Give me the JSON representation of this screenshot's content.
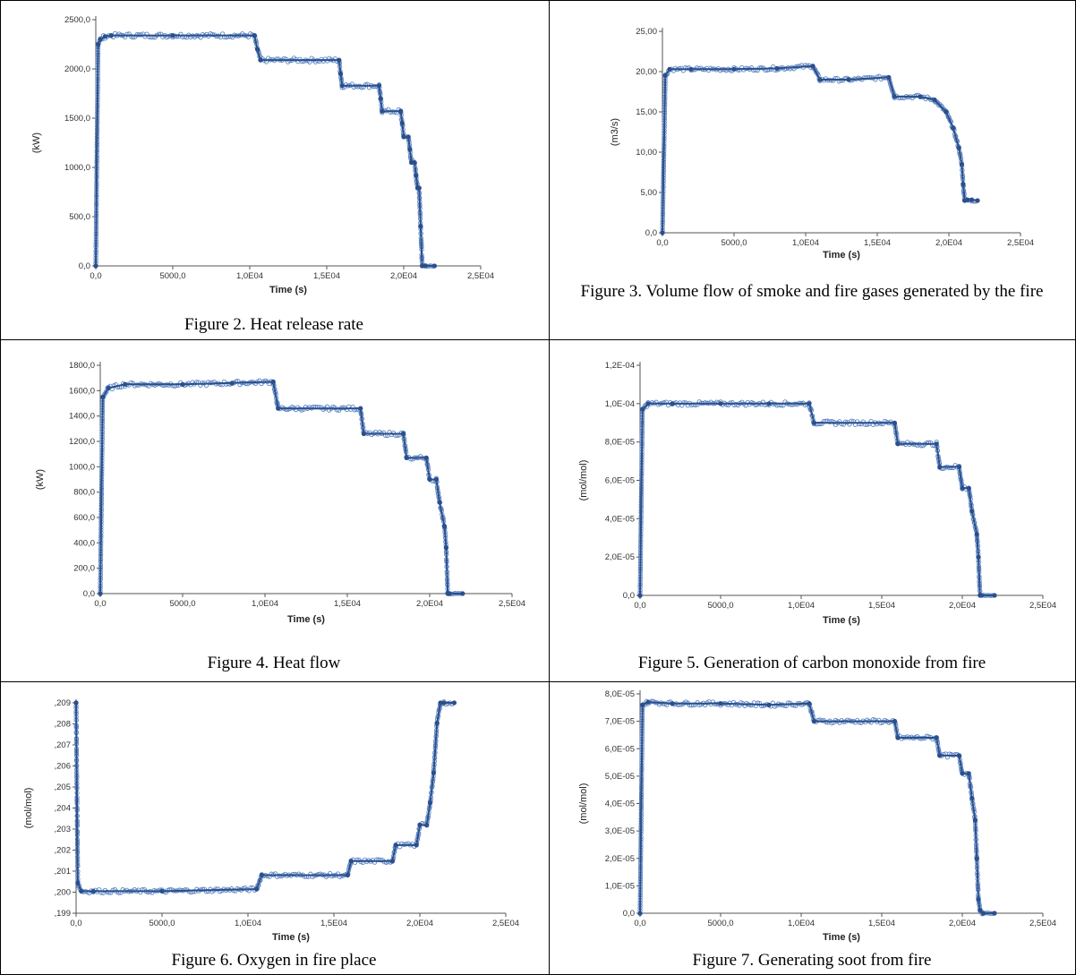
{
  "colors": {
    "series": "#2b4f8a",
    "marker": "#5b84c4",
    "axis": "#555555"
  },
  "charts": [
    {
      "caption": "Figure 2. Heat release rate",
      "ticks_y": [
        "2500,0",
        "2000,0",
        "1500,0",
        "1000,0",
        "500,0",
        "0,0"
      ],
      "ticks_x": [
        "0,0",
        "5000,0",
        "1,0E04",
        "1,5E04",
        "2,0E04",
        "2,5E04"
      ],
      "ylabel": "(kW)",
      "xlabel": "Time (s)"
    },
    {
      "caption": "Figure 3. Volume flow of smoke and fire gases generated by the fire",
      "ticks_y": [
        "25,00",
        "20,00",
        "15,00",
        "10,00",
        "5,00",
        "0,0"
      ],
      "ticks_x": [
        "0,0",
        "5000,0",
        "1,0E04",
        "1,5E04",
        "2,0E04",
        "2,5E04"
      ],
      "ylabel": "(m3/s)",
      "xlabel": "Time (s)"
    },
    {
      "caption": "Figure 4. Heat flow",
      "ticks_y": [
        "1800,0",
        "1600,0",
        "1400,0",
        "1200,0",
        "1000,0",
        "800,0",
        "600,0",
        "400,0",
        "200,0",
        "0,0"
      ],
      "ticks_x": [
        "0,0",
        "5000,0",
        "1,0E04",
        "1,5E04",
        "2,0E04",
        "2,5E04"
      ],
      "ylabel": "(kW)",
      "xlabel": "Time (s)"
    },
    {
      "caption": "Figure 5. Generation of carbon monoxide from fire",
      "ticks_y": [
        "1,2E-04",
        "1,0E-04",
        "8,0E-05",
        "6,0E-05",
        "4,0E-05",
        "2,0E-05",
        "0,0"
      ],
      "ticks_x": [
        "0,0",
        "5000,0",
        "1,0E04",
        "1,5E04",
        "2,0E04",
        "2,5E04"
      ],
      "ylabel": "(mol/mol)",
      "xlabel": "Time (s)"
    },
    {
      "caption": "Figure 6. Oxygen in fire place",
      "ticks_y": [
        ",209",
        ",208",
        ",207",
        ",206",
        ",205",
        ",204",
        ",203",
        ",202",
        ",201",
        ",200",
        ",199"
      ],
      "ticks_x": [
        "0,0",
        "5000,0",
        "1,0E04",
        "1,5E04",
        "2,0E04",
        "2,5E04"
      ],
      "ylabel": "(mol/mol)",
      "xlabel": "Time (s)"
    },
    {
      "caption": "Figure 7. Generating soot from fire",
      "ticks_y": [
        "8,0E-05",
        "7,0E-05",
        "6,0E-05",
        "5,0E-05",
        "4,0E-05",
        "3,0E-05",
        "2,0E-05",
        "1,0E-05",
        "0,0"
      ],
      "ticks_x": [
        "0,0",
        "5000,0",
        "1,0E04",
        "1,5E04",
        "2,0E04",
        "2,5E04"
      ],
      "ylabel": "(mol/mol)",
      "xlabel": "Time (s)"
    }
  ],
  "chart_data": [
    {
      "type": "line",
      "title": "",
      "xlabel": "Time (s)",
      "ylabel": "(kW)",
      "xlim": [
        0,
        25000
      ],
      "ylim": [
        0,
        2500
      ],
      "x": [
        0,
        150,
        300,
        600,
        1000,
        5000,
        10300,
        10500,
        10700,
        15800,
        15900,
        16000,
        18400,
        18500,
        18600,
        19800,
        19900,
        20000,
        20300,
        20400,
        20500,
        20700,
        20800,
        20900,
        21000,
        21100,
        21200,
        21400,
        22000
      ],
      "y": [
        0,
        2250,
        2300,
        2330,
        2340,
        2340,
        2340,
        2200,
        2090,
        2090,
        1950,
        1830,
        1830,
        1700,
        1570,
        1570,
        1450,
        1310,
        1310,
        1180,
        1050,
        1050,
        920,
        790,
        790,
        400,
        0,
        0,
        0
      ],
      "grid": false
    },
    {
      "type": "line",
      "title": "",
      "xlabel": "Time (s)",
      "ylabel": "(m3/s)",
      "xlim": [
        0,
        25000
      ],
      "ylim": [
        0,
        25
      ],
      "x": [
        0,
        200,
        500,
        2000,
        5000,
        8000,
        10500,
        11000,
        13000,
        15800,
        16200,
        18000,
        19000,
        19800,
        20300,
        20700,
        20900,
        21000,
        21100,
        21300,
        21600,
        22000
      ],
      "y": [
        0,
        19.5,
        20.3,
        20.3,
        20.3,
        20.4,
        20.7,
        19.0,
        19.0,
        19.3,
        16.9,
        16.9,
        16.5,
        15.0,
        13.0,
        10.5,
        8.5,
        6.0,
        4.0,
        4.1,
        4.1,
        4.0
      ],
      "grid": false
    },
    {
      "type": "line",
      "title": "",
      "xlabel": "Time (s)",
      "ylabel": "(kW)",
      "xlim": [
        0,
        25000
      ],
      "ylim": [
        0,
        1800
      ],
      "x": [
        0,
        150,
        500,
        1500,
        5000,
        8000,
        10500,
        10800,
        15800,
        16000,
        18400,
        18600,
        19800,
        20000,
        20400,
        20600,
        20900,
        21000,
        21100,
        21200,
        22000
      ],
      "y": [
        0,
        1550,
        1620,
        1650,
        1650,
        1660,
        1670,
        1460,
        1460,
        1260,
        1260,
        1070,
        1070,
        900,
        900,
        720,
        530,
        360,
        0,
        0,
        0
      ],
      "grid": false
    },
    {
      "type": "line",
      "title": "",
      "xlabel": "Time (s)",
      "ylabel": "(mol/mol)",
      "xlim": [
        0,
        25000
      ],
      "ylim": [
        0,
        0.00012
      ],
      "x": [
        0,
        150,
        500,
        2000,
        5000,
        8000,
        10500,
        10800,
        15800,
        16000,
        18400,
        18600,
        19800,
        20000,
        20400,
        20600,
        20900,
        21000,
        21100,
        21200,
        22000
      ],
      "y": [
        0,
        9.7e-05,
        0.0001,
        0.0001,
        0.0001,
        0.0001,
        0.0001,
        9e-05,
        9e-05,
        7.9e-05,
        7.9e-05,
        6.7e-05,
        6.7e-05,
        5.6e-05,
        5.6e-05,
        4.4e-05,
        3.2e-05,
        2e-05,
        0,
        0,
        0
      ],
      "grid": false
    },
    {
      "type": "line",
      "title": "",
      "xlabel": "Time (s)",
      "ylabel": "(mol/mol)",
      "xlim": [
        0,
        25000
      ],
      "ylim": [
        0.199,
        0.2095
      ],
      "x": [
        0,
        100,
        300,
        1000,
        5000,
        10500,
        10800,
        15800,
        16000,
        18400,
        18600,
        19800,
        20000,
        20400,
        20600,
        20800,
        21000,
        21200,
        21400,
        22000
      ],
      "y": [
        0.2095,
        0.2005,
        0.2001,
        0.2001,
        0.2001,
        0.2002,
        0.2009,
        0.2009,
        0.2016,
        0.2016,
        0.2024,
        0.2024,
        0.2034,
        0.2034,
        0.2045,
        0.206,
        0.2085,
        0.2095,
        0.2095,
        0.2095
      ],
      "grid": false
    },
    {
      "type": "line",
      "title": "",
      "xlabel": "Time (s)",
      "ylabel": "(mol/mol)",
      "xlim": [
        0,
        25000
      ],
      "ylim": [
        0,
        8e-05
      ],
      "x": [
        0,
        150,
        500,
        2000,
        5000,
        8000,
        10500,
        10800,
        15800,
        16000,
        18400,
        18600,
        19800,
        20000,
        20400,
        20600,
        20800,
        20900,
        21000,
        21100,
        21300,
        22000
      ],
      "y": [
        0,
        7.6e-05,
        7.7e-05,
        7.65e-05,
        7.65e-05,
        7.6e-05,
        7.65e-05,
        7e-05,
        7e-05,
        6.4e-05,
        6.4e-05,
        5.75e-05,
        5.75e-05,
        5.1e-05,
        5.1e-05,
        4.2e-05,
        3.4e-05,
        2e-05,
        5e-06,
        1e-06,
        0,
        0
      ],
      "grid": false
    }
  ]
}
